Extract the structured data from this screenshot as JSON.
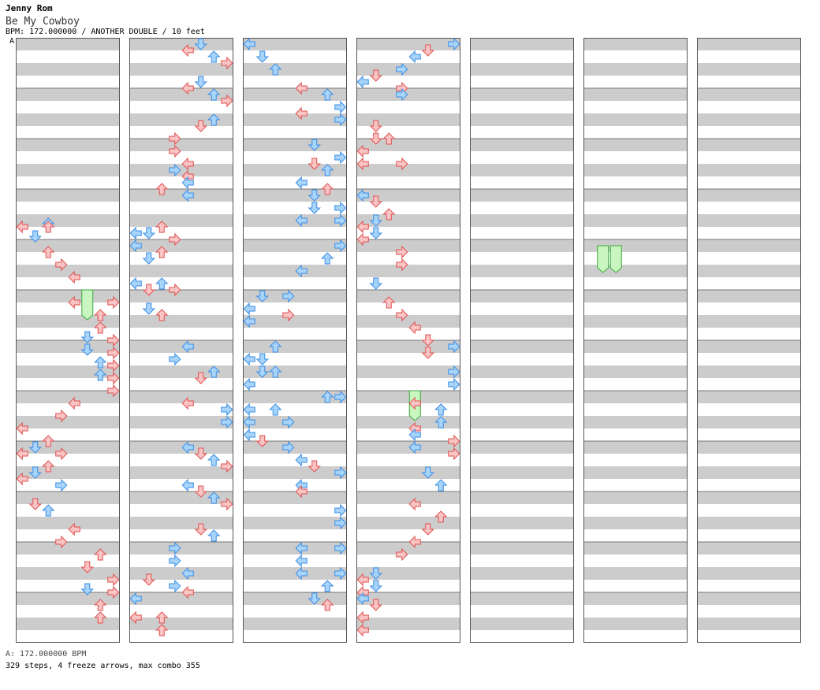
{
  "header": {
    "artist": "Jenny Rom",
    "title": "Be My Cowboy",
    "meta": "BPM: 172.000000 / ANOTHER DOUBLE / 10 feet",
    "bpm_marker": "A"
  },
  "footer": {
    "bpm_legend": "A: 172.000000 BPM",
    "stats": "329 steps, 4 freeze arrows, max combo 355"
  },
  "colors": {
    "red_fill": "#f9c4c4",
    "red_stroke": "#e05050",
    "blue_fill": "#a8d4fa",
    "blue_stroke": "#3a8ee6",
    "freeze_fill": "#c8f5c0",
    "freeze_stroke": "#3aaa3a",
    "stripe": "#cccccc",
    "frame": "#555555"
  },
  "chart_data": {
    "type": "step-chart",
    "columns": 7,
    "measures_per_column": 12,
    "lanes": 8,
    "lane_directions": [
      "left",
      "down",
      "up",
      "right",
      "left",
      "down",
      "up",
      "right"
    ],
    "note_key": "each note is [column, row, lane]; row = 1/8-beat subdivision index (0–383) within a column",
    "notes": [
      [
        0,
        120,
        0
      ],
      [
        0,
        118,
        2
      ],
      [
        0,
        120,
        2
      ],
      [
        0,
        126,
        1
      ],
      [
        0,
        136,
        2
      ],
      [
        0,
        144,
        3
      ],
      [
        0,
        152,
        4
      ],
      [
        0,
        168,
        4
      ],
      [
        0,
        168,
        7
      ],
      [
        0,
        176,
        6
      ],
      [
        0,
        184,
        6
      ],
      [
        0,
        192,
        7
      ],
      [
        0,
        200,
        7
      ],
      [
        0,
        208,
        7
      ],
      [
        0,
        216,
        7
      ],
      [
        0,
        224,
        7
      ],
      [
        0,
        190,
        5
      ],
      [
        0,
        198,
        5
      ],
      [
        0,
        206,
        6
      ],
      [
        0,
        214,
        6
      ],
      [
        0,
        232,
        4
      ],
      [
        0,
        240,
        3
      ],
      [
        0,
        248,
        0
      ],
      [
        0,
        256,
        2
      ],
      [
        0,
        260,
        1
      ],
      [
        0,
        264,
        0
      ],
      [
        0,
        264,
        3
      ],
      [
        0,
        272,
        2
      ],
      [
        0,
        276,
        1
      ],
      [
        0,
        280,
        0
      ],
      [
        0,
        284,
        3
      ],
      [
        0,
        296,
        1
      ],
      [
        0,
        300,
        2
      ],
      [
        0,
        312,
        4
      ],
      [
        0,
        320,
        3
      ],
      [
        0,
        328,
        6
      ],
      [
        0,
        336,
        5
      ],
      [
        0,
        344,
        7
      ],
      [
        0,
        350,
        5
      ],
      [
        0,
        352,
        7
      ],
      [
        0,
        360,
        6
      ],
      [
        0,
        368,
        6
      ],
      [
        1,
        4,
        5
      ],
      [
        1,
        8,
        4
      ],
      [
        1,
        12,
        6
      ],
      [
        1,
        16,
        7
      ],
      [
        1,
        28,
        5
      ],
      [
        1,
        32,
        4
      ],
      [
        1,
        36,
        6
      ],
      [
        1,
        40,
        7
      ],
      [
        1,
        52,
        6
      ],
      [
        1,
        56,
        5
      ],
      [
        1,
        64,
        3
      ],
      [
        1,
        72,
        3
      ],
      [
        1,
        80,
        4
      ],
      [
        1,
        84,
        3
      ],
      [
        1,
        88,
        4
      ],
      [
        1,
        92,
        4
      ],
      [
        1,
        96,
        2
      ],
      [
        1,
        100,
        4
      ],
      [
        1,
        124,
        0
      ],
      [
        1,
        124,
        1
      ],
      [
        1,
        120,
        2
      ],
      [
        1,
        132,
        0
      ],
      [
        1,
        136,
        2
      ],
      [
        1,
        140,
        1
      ],
      [
        1,
        128,
        3
      ],
      [
        1,
        156,
        0
      ],
      [
        1,
        160,
        1
      ],
      [
        1,
        156,
        2
      ],
      [
        1,
        160,
        3
      ],
      [
        1,
        172,
        1
      ],
      [
        1,
        176,
        2
      ],
      [
        1,
        196,
        4
      ],
      [
        1,
        204,
        3
      ],
      [
        1,
        212,
        6
      ],
      [
        1,
        216,
        5
      ],
      [
        1,
        232,
        4
      ],
      [
        1,
        236,
        7
      ],
      [
        1,
        244,
        7
      ],
      [
        1,
        260,
        4
      ],
      [
        1,
        264,
        5
      ],
      [
        1,
        268,
        6
      ],
      [
        1,
        272,
        7
      ],
      [
        1,
        284,
        4
      ],
      [
        1,
        288,
        5
      ],
      [
        1,
        292,
        6
      ],
      [
        1,
        296,
        7
      ],
      [
        1,
        312,
        5
      ],
      [
        1,
        316,
        6
      ],
      [
        1,
        324,
        3
      ],
      [
        1,
        332,
        3
      ],
      [
        1,
        340,
        4
      ],
      [
        1,
        344,
        1
      ],
      [
        1,
        348,
        3
      ],
      [
        1,
        352,
        4
      ],
      [
        1,
        356,
        0
      ],
      [
        1,
        368,
        0
      ],
      [
        1,
        368,
        2
      ],
      [
        1,
        376,
        2
      ],
      [
        2,
        4,
        0
      ],
      [
        2,
        12,
        1
      ],
      [
        2,
        20,
        2
      ],
      [
        2,
        32,
        4
      ],
      [
        2,
        36,
        6
      ],
      [
        2,
        44,
        7
      ],
      [
        2,
        48,
        4
      ],
      [
        2,
        52,
        7
      ],
      [
        2,
        68,
        5
      ],
      [
        2,
        76,
        7
      ],
      [
        2,
        80,
        5
      ],
      [
        2,
        84,
        6
      ],
      [
        2,
        92,
        4
      ],
      [
        2,
        96,
        6
      ],
      [
        2,
        100,
        5
      ],
      [
        2,
        108,
        5
      ],
      [
        2,
        108,
        7
      ],
      [
        2,
        116,
        4
      ],
      [
        2,
        116,
        7
      ],
      [
        2,
        132,
        7
      ],
      [
        2,
        140,
        6
      ],
      [
        2,
        148,
        4
      ],
      [
        2,
        164,
        1
      ],
      [
        2,
        164,
        3
      ],
      [
        2,
        172,
        0
      ],
      [
        2,
        180,
        0
      ],
      [
        2,
        176,
        3
      ],
      [
        2,
        196,
        2
      ],
      [
        2,
        204,
        0
      ],
      [
        2,
        204,
        1
      ],
      [
        2,
        212,
        1
      ],
      [
        2,
        212,
        2
      ],
      [
        2,
        220,
        0
      ],
      [
        2,
        228,
        6
      ],
      [
        2,
        228,
        7
      ],
      [
        2,
        236,
        0
      ],
      [
        2,
        236,
        2
      ],
      [
        2,
        244,
        0
      ],
      [
        2,
        244,
        3
      ],
      [
        2,
        252,
        0
      ],
      [
        2,
        256,
        1
      ],
      [
        2,
        260,
        3
      ],
      [
        2,
        268,
        4
      ],
      [
        2,
        272,
        5
      ],
      [
        2,
        276,
        7
      ],
      [
        2,
        284,
        4
      ],
      [
        2,
        288,
        4
      ],
      [
        2,
        300,
        7
      ],
      [
        2,
        308,
        7
      ],
      [
        2,
        324,
        4
      ],
      [
        2,
        324,
        7
      ],
      [
        2,
        332,
        4
      ],
      [
        2,
        340,
        4
      ],
      [
        2,
        340,
        7
      ],
      [
        2,
        348,
        6
      ],
      [
        2,
        356,
        5
      ],
      [
        2,
        360,
        6
      ],
      [
        3,
        4,
        7
      ],
      [
        3,
        8,
        5
      ],
      [
        3,
        12,
        4
      ],
      [
        3,
        20,
        3
      ],
      [
        3,
        24,
        1
      ],
      [
        3,
        28,
        0
      ],
      [
        3,
        32,
        3
      ],
      [
        3,
        36,
        3
      ],
      [
        3,
        56,
        1
      ],
      [
        3,
        64,
        1
      ],
      [
        3,
        64,
        2
      ],
      [
        3,
        72,
        0
      ],
      [
        3,
        80,
        0
      ],
      [
        3,
        80,
        3
      ],
      [
        3,
        100,
        0
      ],
      [
        3,
        104,
        1
      ],
      [
        3,
        112,
        2
      ],
      [
        3,
        120,
        0
      ],
      [
        3,
        116,
        1
      ],
      [
        3,
        124,
        1
      ],
      [
        3,
        128,
        0
      ],
      [
        3,
        136,
        3
      ],
      [
        3,
        144,
        3
      ],
      [
        3,
        156,
        1
      ],
      [
        3,
        168,
        2
      ],
      [
        3,
        176,
        3
      ],
      [
        3,
        184,
        4
      ],
      [
        3,
        192,
        5
      ],
      [
        3,
        196,
        7
      ],
      [
        3,
        200,
        5
      ],
      [
        3,
        212,
        7
      ],
      [
        3,
        220,
        7
      ],
      [
        3,
        232,
        4
      ],
      [
        3,
        236,
        6
      ],
      [
        3,
        244,
        6
      ],
      [
        3,
        248,
        4
      ],
      [
        3,
        252,
        4
      ],
      [
        3,
        256,
        7
      ],
      [
        3,
        260,
        4
      ],
      [
        3,
        264,
        7
      ],
      [
        3,
        276,
        5
      ],
      [
        3,
        284,
        6
      ],
      [
        3,
        296,
        4
      ],
      [
        3,
        304,
        6
      ],
      [
        3,
        312,
        5
      ],
      [
        3,
        320,
        4
      ],
      [
        3,
        328,
        3
      ],
      [
        3,
        340,
        1
      ],
      [
        3,
        344,
        0
      ],
      [
        3,
        348,
        1
      ],
      [
        3,
        352,
        0
      ],
      [
        3,
        356,
        0
      ],
      [
        3,
        360,
        1
      ],
      [
        3,
        368,
        0
      ],
      [
        3,
        376,
        0
      ]
    ],
    "freezes": [
      [
        0,
        160,
        5,
        176
      ],
      [
        3,
        224,
        4,
        240
      ],
      [
        5,
        132,
        1,
        146
      ],
      [
        5,
        132,
        2,
        146
      ]
    ]
  }
}
